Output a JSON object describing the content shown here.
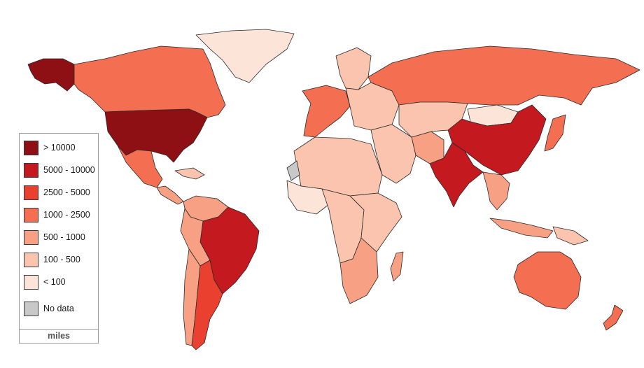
{
  "legend": {
    "unit": "miles",
    "classes": [
      {
        "label": "> 10000",
        "color": "#8e0f14"
      },
      {
        "label": "5000 - 10000",
        "color": "#c4191e"
      },
      {
        "label": "2500 - 5000",
        "color": "#e9402f"
      },
      {
        "label": "1000 - 2500",
        "color": "#f46f52"
      },
      {
        "label": "500 - 1000",
        "color": "#f8a083"
      },
      {
        "label": "100 - 500",
        "color": "#fbc4ae"
      },
      {
        "label": "< 100",
        "color": "#fde4d8"
      },
      {
        "label": "No data",
        "color": "#c8c8c8"
      }
    ]
  },
  "regions": [
    {
      "name": "alaska",
      "class": 0
    },
    {
      "name": "canada",
      "class": 3
    },
    {
      "name": "greenland",
      "class": 6
    },
    {
      "name": "usa",
      "class": 0
    },
    {
      "name": "mexico",
      "class": 3
    },
    {
      "name": "central-america",
      "class": 4
    },
    {
      "name": "caribbean",
      "class": 5
    },
    {
      "name": "colombia-venezuela",
      "class": 4
    },
    {
      "name": "peru-bolivia",
      "class": 4
    },
    {
      "name": "chile",
      "class": 4
    },
    {
      "name": "brazil",
      "class": 1
    },
    {
      "name": "argentina",
      "class": 2
    },
    {
      "name": "western-europe",
      "class": 3
    },
    {
      "name": "scandinavia",
      "class": 5
    },
    {
      "name": "eastern-europe",
      "class": 5
    },
    {
      "name": "russia",
      "class": 3
    },
    {
      "name": "middle-east",
      "class": 5
    },
    {
      "name": "iran",
      "class": 4
    },
    {
      "name": "central-asia",
      "class": 5
    },
    {
      "name": "mongolia",
      "class": 6
    },
    {
      "name": "china",
      "class": 1
    },
    {
      "name": "india",
      "class": 1
    },
    {
      "name": "southeast-asia",
      "class": 4
    },
    {
      "name": "japan",
      "class": 3
    },
    {
      "name": "indonesia",
      "class": 4
    },
    {
      "name": "north-africa",
      "class": 5
    },
    {
      "name": "west-africa",
      "class": 6
    },
    {
      "name": "western-sahara",
      "class": 7
    },
    {
      "name": "central-africa",
      "class": 5
    },
    {
      "name": "east-africa",
      "class": 5
    },
    {
      "name": "south-africa",
      "class": 4
    },
    {
      "name": "madagascar",
      "class": 4
    },
    {
      "name": "australia",
      "class": 3
    },
    {
      "name": "new-zealand",
      "class": 3
    },
    {
      "name": "papua",
      "class": 5
    }
  ]
}
